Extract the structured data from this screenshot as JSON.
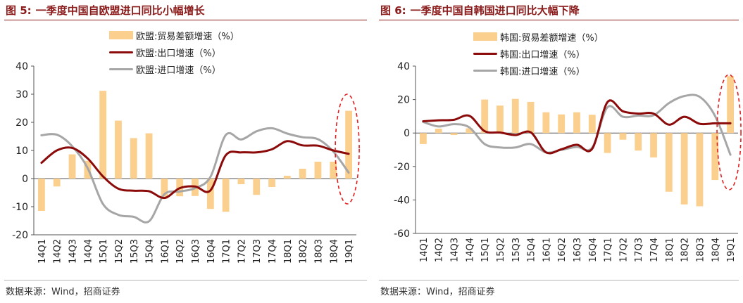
{
  "charts": [
    {
      "fig_no": "图 5:",
      "title": "一季度中国自欧盟进口同比小幅增长",
      "source": "数据来源：Wind，招商证券",
      "legend": [
        "欧盟:贸易差额增速（%）",
        "欧盟:出口增速（%）",
        "欧盟:进口增速（%）"
      ]
    },
    {
      "fig_no": "图 6:",
      "title": "一季度中国自韩国进口同比大幅下降",
      "source": "数据来源：Wind，招商证券",
      "legend": [
        "韩国:贸易差额增速（%）",
        "韩国:出口增速（%）",
        "韩国:进口增速（%）"
      ]
    }
  ],
  "colors": {
    "bar": "#fbd08e",
    "export": "#8b0a0a",
    "import": "#a6a6a6",
    "highlight": "#e02020"
  },
  "chart_data": [
    {
      "type": "bar",
      "title": "一季度中国自欧盟进口同比小幅增长",
      "categories": [
        "14Q1",
        "14Q2",
        "14Q3",
        "14Q4",
        "15Q1",
        "15Q2",
        "15Q3",
        "15Q4",
        "16Q1",
        "16Q2",
        "16Q3",
        "16Q4",
        "17Q1",
        "17Q2",
        "17Q3",
        "17Q4",
        "18Q1",
        "18Q2",
        "18Q3",
        "18Q4",
        "19Q1"
      ],
      "ylim": [
        -20,
        40
      ],
      "yticks": [
        -20,
        -10,
        0,
        10,
        20,
        30,
        40
      ],
      "series": [
        {
          "name": "欧盟:贸易差额增速（%）",
          "type": "bar",
          "values": [
            -11.5,
            -2.8,
            8.6,
            6.3,
            31.2,
            20.6,
            14.4,
            16.1,
            -7.2,
            -6.3,
            -6.2,
            -10.8,
            -11.8,
            -2.0,
            -5.8,
            -3.0,
            1.0,
            3.5,
            6.0,
            6.0,
            24.1
          ]
        },
        {
          "name": "欧盟:出口增速（%）",
          "type": "line",
          "values": [
            5.6,
            10.0,
            10.9,
            7.2,
            0.8,
            -3.6,
            -4.3,
            -4.5,
            -6.9,
            -3.4,
            -2.8,
            -4.2,
            8.3,
            9.3,
            9.3,
            10.4,
            13.3,
            11.8,
            11.7,
            10.0,
            8.8
          ]
        },
        {
          "name": "欧盟:进口增速（%）",
          "type": "line",
          "values": [
            15.4,
            15.6,
            11.5,
            3.8,
            -9.0,
            -12.9,
            -13.6,
            -15.2,
            -5.6,
            -4.6,
            -3.4,
            0.6,
            15.5,
            13.9,
            16.8,
            17.9,
            16.0,
            14.7,
            14.0,
            9.6,
            2.1
          ]
        }
      ]
    },
    {
      "type": "bar",
      "title": "一季度中国自韩国进口同比大幅下降",
      "categories": [
        "14Q1",
        "14Q2",
        "14Q3",
        "14Q4",
        "15Q1",
        "15Q2",
        "15Q3",
        "15Q4",
        "16Q1",
        "16Q2",
        "16Q3",
        "16Q4",
        "17Q1",
        "17Q2",
        "17Q3",
        "17Q4",
        "18Q1",
        "18Q2",
        "18Q3",
        "18Q4",
        "19Q1"
      ],
      "ylim": [
        -60,
        40
      ],
      "yticks": [
        -60,
        -40,
        -20,
        0,
        20,
        40
      ],
      "series": [
        {
          "name": "韩国:贸易差额增速（%）",
          "type": "bar",
          "values": [
            -6.6,
            2.6,
            -1.2,
            2.8,
            20.0,
            16.4,
            20.4,
            18.6,
            12.4,
            11.1,
            12.4,
            10.9,
            -11.9,
            -4.0,
            -10.5,
            -14.6,
            -35.1,
            -42.7,
            -43.8,
            -28.1,
            34.0
          ]
        },
        {
          "name": "韩国:出口增速（%）",
          "type": "line",
          "values": [
            7.0,
            7.6,
            7.9,
            10.3,
            1.1,
            0.3,
            -1.2,
            0.4,
            -11.6,
            -9.7,
            -7.0,
            -9.5,
            18.5,
            13.0,
            11.6,
            11.6,
            5.0,
            9.7,
            5.5,
            5.8,
            5.8
          ]
        },
        {
          "name": "韩国:进口增速（%）",
          "type": "line",
          "values": [
            6.6,
            3.9,
            5.3,
            3.4,
            -6.6,
            -8.6,
            -8.6,
            -6.6,
            -11.6,
            -10.1,
            -8.3,
            -8.8,
            15.4,
            9.7,
            10.4,
            10.6,
            17.9,
            22.1,
            21.6,
            10.2,
            -13.0
          ]
        }
      ]
    }
  ]
}
